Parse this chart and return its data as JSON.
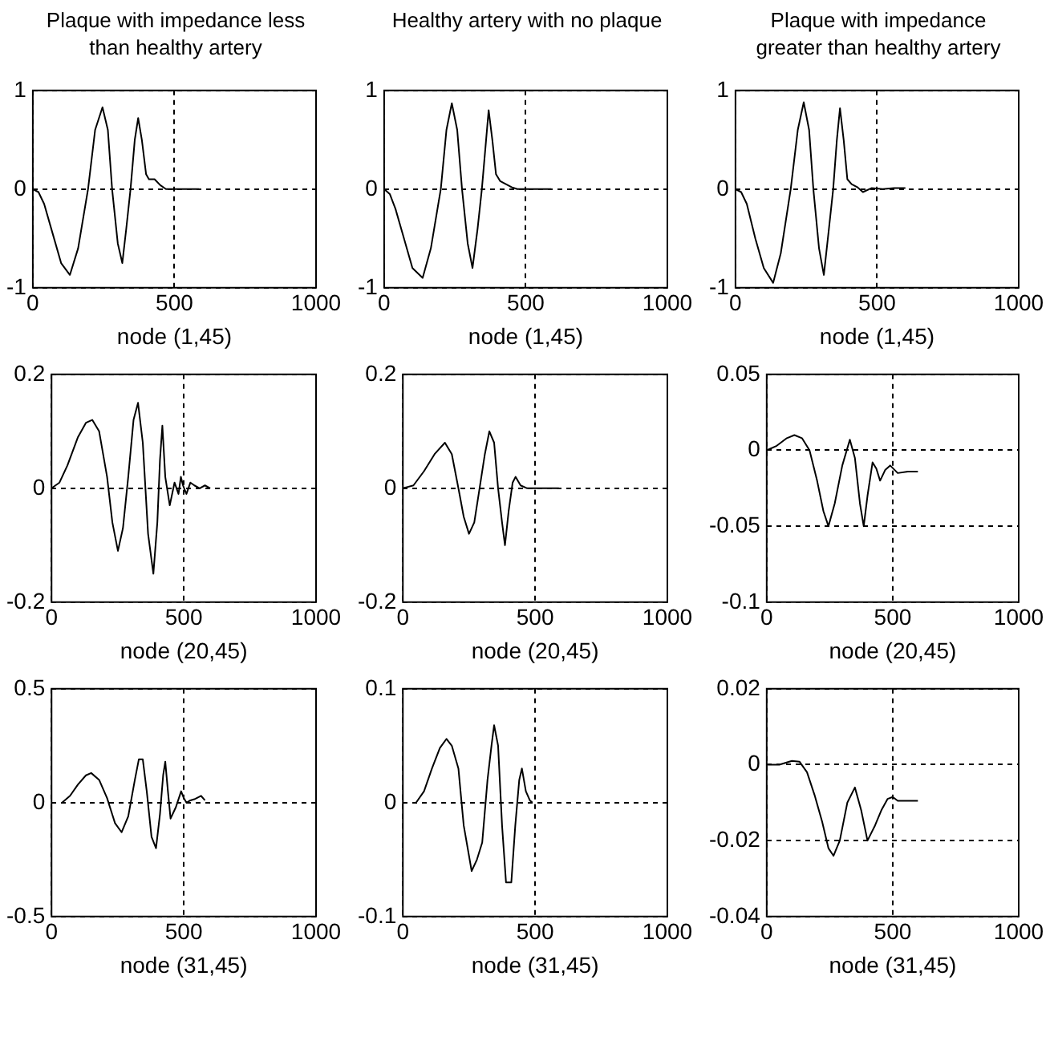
{
  "chart_data": [
    {
      "type": "line",
      "title": "Plaque with impedance less than healthy artery",
      "xlabel": "node (1,45)",
      "color": "#000000",
      "grid": true,
      "xlim": [
        0,
        1000
      ],
      "xticks": [
        0,
        500,
        1000
      ],
      "ylim": [
        -1,
        1
      ],
      "yticks": [
        -1,
        0,
        1
      ],
      "x": [
        0,
        20,
        40,
        70,
        100,
        131,
        160,
        195,
        220,
        246,
        265,
        280,
        300,
        316,
        330,
        345,
        360,
        372,
        385,
        400,
        410,
        430,
        450,
        470,
        500,
        550,
        587
      ],
      "values": [
        0,
        -0.03,
        -0.15,
        -0.45,
        -0.75,
        -0.87,
        -0.6,
        0,
        0.6,
        0.83,
        0.6,
        0,
        -0.55,
        -0.75,
        -0.4,
        0,
        0.5,
        0.72,
        0.5,
        0.15,
        0.1,
        0.1,
        0.04,
        0,
        0,
        0,
        0
      ]
    },
    {
      "type": "line",
      "title": "Healthy artery with no plaque",
      "xlabel": "node (1,45)",
      "color": "#000000",
      "grid": true,
      "xlim": [
        0,
        1000
      ],
      "xticks": [
        0,
        500,
        1000
      ],
      "ylim": [
        -1,
        1
      ],
      "yticks": [
        -1,
        0,
        1
      ],
      "x": [
        0,
        20,
        40,
        70,
        100,
        136,
        165,
        200,
        220,
        239,
        258,
        275,
        295,
        312,
        330,
        345,
        360,
        369,
        382,
        395,
        410,
        430,
        450,
        470,
        500,
        550,
        590
      ],
      "values": [
        0,
        -0.05,
        -0.2,
        -0.5,
        -0.8,
        -0.9,
        -0.6,
        0,
        0.6,
        0.87,
        0.6,
        0,
        -0.55,
        -0.8,
        -0.4,
        0,
        0.5,
        0.8,
        0.5,
        0.15,
        0.08,
        0.05,
        0.02,
        0,
        0,
        0,
        0
      ]
    },
    {
      "type": "line",
      "title": "Plaque with impedance greater than healthy artery",
      "xlabel": "node (1,45)",
      "color": "#000000",
      "grid": true,
      "xlim": [
        0,
        1000
      ],
      "xticks": [
        0,
        500,
        1000
      ],
      "ylim": [
        -1,
        1
      ],
      "yticks": [
        -1,
        0,
        1
      ],
      "x": [
        0,
        20,
        40,
        70,
        100,
        133,
        160,
        195,
        220,
        241,
        260,
        275,
        295,
        312,
        330,
        345,
        358,
        369,
        382,
        395,
        410,
        430,
        450,
        480,
        520,
        560,
        600
      ],
      "values": [
        0,
        -0.03,
        -0.15,
        -0.5,
        -0.8,
        -0.95,
        -0.65,
        0,
        0.6,
        0.88,
        0.6,
        0,
        -0.6,
        -0.87,
        -0.4,
        0,
        0.5,
        0.82,
        0.5,
        0.1,
        0.05,
        0.02,
        -0.03,
        0.01,
        0,
        0.01,
        0.01
      ]
    },
    {
      "type": "line",
      "xlabel": "node (20,45)",
      "color": "#000000",
      "grid": true,
      "xlim": [
        0,
        1000
      ],
      "xticks": [
        0,
        500,
        1000
      ],
      "ylim": [
        -0.2,
        0.2
      ],
      "yticks": [
        -0.2,
        0,
        0.2
      ],
      "x": [
        0,
        30,
        60,
        100,
        130,
        154,
        180,
        210,
        230,
        251,
        270,
        290,
        310,
        327,
        345,
        365,
        385,
        400,
        410,
        419,
        430,
        447,
        465,
        480,
        489,
        497,
        510,
        525,
        540,
        560,
        580,
        600
      ],
      "values": [
        0,
        0.01,
        0.04,
        0.09,
        0.115,
        0.12,
        0.1,
        0.02,
        -0.06,
        -0.11,
        -0.07,
        0.02,
        0.12,
        0.15,
        0.08,
        -0.08,
        -0.15,
        -0.06,
        0.05,
        0.11,
        0.02,
        -0.03,
        0.01,
        -0.01,
        0.02,
        0.005,
        -0.01,
        0.01,
        0.005,
        0,
        0.005,
        0
      ]
    },
    {
      "type": "line",
      "xlabel": "node (20,45)",
      "color": "#000000",
      "grid": true,
      "xlim": [
        0,
        1000
      ],
      "xticks": [
        0,
        500,
        1000
      ],
      "ylim": [
        -0.2,
        0.2
      ],
      "yticks": [
        -0.2,
        0,
        0.2
      ],
      "x": [
        0,
        40,
        80,
        120,
        159,
        185,
        210,
        230,
        250,
        270,
        290,
        310,
        327,
        345,
        360,
        375,
        386,
        400,
        415,
        426,
        445,
        470,
        500,
        550,
        590
      ],
      "values": [
        0,
        0.005,
        0.03,
        0.06,
        0.08,
        0.06,
        0,
        -0.05,
        -0.08,
        -0.06,
        0,
        0.06,
        0.1,
        0.08,
        0,
        -0.06,
        -0.1,
        -0.04,
        0.01,
        0.02,
        0.005,
        0,
        0,
        0,
        0
      ]
    },
    {
      "type": "line",
      "xlabel": "node (20,45)",
      "color": "#000000",
      "grid": true,
      "xlim": [
        0,
        1000
      ],
      "xticks": [
        0,
        500,
        1000
      ],
      "ylim": [
        -0.1,
        0.05
      ],
      "yticks": [
        -0.1,
        -0.05,
        0,
        0.05
      ],
      "x": [
        0,
        40,
        80,
        110,
        140,
        170,
        200,
        225,
        245,
        270,
        300,
        330,
        350,
        370,
        385,
        400,
        420,
        435,
        450,
        470,
        490,
        520,
        560,
        600
      ],
      "values": [
        0,
        0.003,
        0.008,
        0.01,
        0.008,
        0,
        -0.02,
        -0.04,
        -0.05,
        -0.035,
        -0.01,
        0.007,
        -0.005,
        -0.035,
        -0.05,
        -0.03,
        -0.008,
        -0.012,
        -0.02,
        -0.013,
        -0.01,
        -0.015,
        -0.014,
        -0.014
      ]
    },
    {
      "type": "line",
      "xlabel": "node (31,45)",
      "color": "#000000",
      "grid": true,
      "xlim": [
        0,
        1000
      ],
      "xticks": [
        0,
        500,
        1000
      ],
      "ylim": [
        -0.5,
        0.5
      ],
      "yticks": [
        -0.5,
        0,
        0.5
      ],
      "x": [
        40,
        70,
        100,
        130,
        150,
        180,
        210,
        240,
        265,
        290,
        315,
        330,
        345,
        360,
        378,
        395,
        410,
        422,
        430,
        440,
        450,
        470,
        490,
        500,
        510,
        525,
        540,
        565,
        580
      ],
      "values": [
        0,
        0.03,
        0.08,
        0.12,
        0.13,
        0.1,
        0.02,
        -0.09,
        -0.13,
        -0.06,
        0.1,
        0.19,
        0.19,
        0.05,
        -0.15,
        -0.2,
        -0.05,
        0.12,
        0.18,
        0.05,
        -0.07,
        -0.02,
        0.05,
        0.02,
        0,
        0.01,
        0.015,
        0.03,
        0.01
      ]
    },
    {
      "type": "line",
      "xlabel": "node (31,45)",
      "color": "#000000",
      "grid": true,
      "xlim": [
        0,
        1000
      ],
      "xticks": [
        0,
        500,
        1000
      ],
      "ylim": [
        -0.1,
        0.1
      ],
      "yticks": [
        -0.1,
        0,
        0.1
      ],
      "x": [
        50,
        80,
        110,
        140,
        165,
        185,
        210,
        230,
        260,
        280,
        300,
        320,
        335,
        345,
        360,
        375,
        390,
        410,
        425,
        440,
        450,
        465,
        480,
        490
      ],
      "values": [
        0,
        0.01,
        0.03,
        0.048,
        0.056,
        0.05,
        0.03,
        -0.02,
        -0.06,
        -0.05,
        -0.035,
        0.02,
        0.05,
        0.068,
        0.05,
        -0.02,
        -0.07,
        -0.07,
        -0.02,
        0.02,
        0.03,
        0.01,
        0.002,
        0
      ]
    },
    {
      "type": "line",
      "xlabel": "node (31,45)",
      "color": "#000000",
      "grid": true,
      "xlim": [
        0,
        1000
      ],
      "xticks": [
        0,
        500,
        1000
      ],
      "ylim": [
        -0.04,
        0.02
      ],
      "yticks": [
        -0.04,
        -0.02,
        0,
        0.02
      ],
      "x": [
        0,
        50,
        100,
        130,
        160,
        190,
        220,
        245,
        265,
        290,
        320,
        350,
        375,
        400,
        415,
        430,
        455,
        480,
        500,
        520,
        560,
        600
      ],
      "values": [
        0,
        0,
        0.001,
        0.0008,
        -0.002,
        -0.008,
        -0.015,
        -0.022,
        -0.024,
        -0.02,
        -0.01,
        -0.006,
        -0.012,
        -0.02,
        -0.018,
        -0.016,
        -0.012,
        -0.009,
        -0.0085,
        -0.0095,
        -0.0095,
        -0.0095
      ]
    }
  ]
}
